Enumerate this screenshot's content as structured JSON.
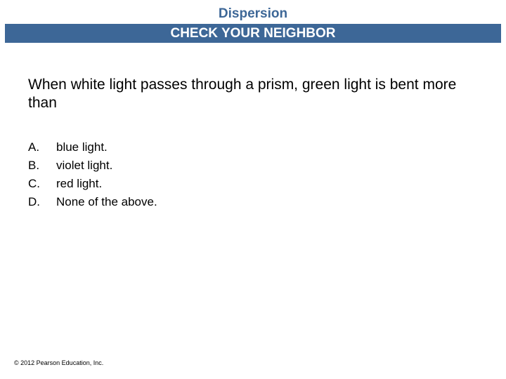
{
  "header": {
    "title": "Dispersion",
    "subtitle": "CHECK YOUR NEIGHBOR",
    "band_color": "#3d6797",
    "title_color": "#3d6797",
    "subtitle_color": "#ffffff",
    "title_fontsize": 19,
    "subtitle_fontsize": 19,
    "font_weight": "bold"
  },
  "question": {
    "text": "When white light passes through a prism, green light is bent more than",
    "fontsize": 21,
    "color": "#000000"
  },
  "options": {
    "labels": [
      "A.",
      "B.",
      "C.",
      "D."
    ],
    "items": [
      "blue light.",
      "violet light.",
      "red light.",
      "None of the above."
    ],
    "fontsize": 17,
    "color": "#000000"
  },
  "copyright": {
    "text": "© 2012 Pearson Education, Inc.",
    "fontsize": 9,
    "color": "#000000"
  },
  "background_color": "#ffffff",
  "slide_width": 720,
  "slide_height": 540
}
